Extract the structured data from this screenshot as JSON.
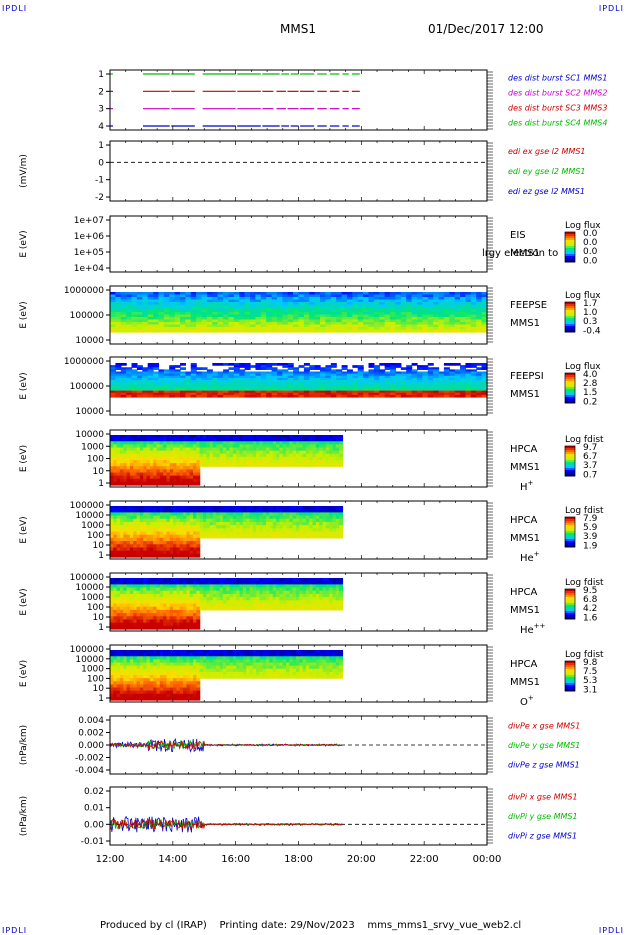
{
  "header": {
    "corner_label": "IPDLI",
    "title": "MMS1",
    "date": "01/Dec/2017 12:00"
  },
  "footer": {
    "producer": "Produced by cl (IRAP)",
    "printing": "Printing date: 29/Nov/2023",
    "file": "mms_mms1_srvy_vue_web2.cl"
  },
  "colors": {
    "blue": "#0000cc",
    "magenta": "#cc00cc",
    "red": "#cc0000",
    "green": "#00bb00",
    "black": "#000000"
  },
  "chart_data": [
    {
      "id": "des-burst",
      "type": "timeline",
      "ylabel": "",
      "yticks": [
        "1",
        "2",
        "3",
        "4"
      ],
      "legend": [
        {
          "text": "des dist burst SC1 MMS1",
          "color": "#0000cc"
        },
        {
          "text": "des dist burst SC2 MMS2",
          "color": "#cc00cc"
        },
        {
          "text": "des dist burst SC3 MMS3",
          "color": "#cc0000"
        },
        {
          "text": "des dist burst SC4 MMS4",
          "color": "#00bb00"
        }
      ],
      "series": [
        {
          "level": 1,
          "color": "#0000cc",
          "segments": [
            [
              13.05,
              13.9
            ],
            [
              13.95,
              14.7
            ],
            [
              14.95,
              16.0
            ],
            [
              16.05,
              16.8
            ],
            [
              16.85,
              17.4
            ],
            [
              17.45,
              17.7
            ],
            [
              17.75,
              18.0
            ],
            [
              18.05,
              18.5
            ],
            [
              18.6,
              18.9
            ],
            [
              19.0,
              19.3
            ],
            [
              19.4,
              19.6
            ],
            [
              19.7,
              19.95
            ]
          ]
        },
        {
          "level": 2,
          "color": "#cc00cc",
          "segments": [
            [
              13.05,
              13.9
            ],
            [
              13.95,
              14.7
            ],
            [
              14.95,
              16.0
            ],
            [
              16.05,
              16.8
            ],
            [
              16.85,
              17.2
            ],
            [
              17.3,
              17.6
            ],
            [
              17.65,
              18.0
            ],
            [
              18.05,
              18.5
            ],
            [
              18.6,
              18.9
            ],
            [
              19.0,
              19.3
            ],
            [
              19.4,
              19.6
            ],
            [
              19.7,
              19.95
            ]
          ]
        },
        {
          "level": 3,
          "color": "#cc0000",
          "segments": [
            [
              13.05,
              13.9
            ],
            [
              13.95,
              14.7
            ],
            [
              14.95,
              16.0
            ],
            [
              16.05,
              16.8
            ],
            [
              16.85,
              17.2
            ],
            [
              17.3,
              17.6
            ],
            [
              17.65,
              18.0
            ],
            [
              18.05,
              18.5
            ],
            [
              18.6,
              18.9
            ],
            [
              19.0,
              19.3
            ],
            [
              19.4,
              19.6
            ],
            [
              19.7,
              19.95
            ]
          ]
        },
        {
          "level": 4,
          "color": "#00bb00",
          "segments": [
            [
              13.05,
              13.9
            ],
            [
              13.95,
              14.7
            ],
            [
              14.95,
              16.0
            ],
            [
              16.05,
              16.8
            ],
            [
              16.85,
              17.4
            ],
            [
              17.45,
              17.7
            ],
            [
              17.75,
              18.0
            ],
            [
              18.05,
              18.5
            ],
            [
              18.6,
              18.9
            ],
            [
              19.0,
              19.3
            ],
            [
              19.4,
              19.6
            ],
            [
              19.7,
              19.95
            ]
          ]
        }
      ]
    },
    {
      "id": "edi-e",
      "type": "line",
      "ylabel": "(mV/m)",
      "yticks": [
        "1",
        "0",
        "-1",
        "-2"
      ],
      "legend": [
        {
          "text": "edi ex gse l2 MMS1",
          "color": "#cc0000"
        },
        {
          "text": "edi ey gse l2 MMS1",
          "color": "#00bb00"
        },
        {
          "text": "edi ez gse l2 MMS1",
          "color": "#0000cc"
        }
      ],
      "zero_line": true
    },
    {
      "id": "eis",
      "type": "heatmap",
      "ylabel": "E (eV)",
      "yticks": [
        "1e+07",
        "1e+06",
        "1e+05",
        "1e+04"
      ],
      "right_labels": [
        "EIS",
        "MMS1"
      ],
      "overlay_text": "lrgy electron to",
      "colorbar": {
        "title": "Log flux",
        "ticks": [
          "0.0",
          "0.0",
          "0.0",
          "0.0"
        ]
      }
    },
    {
      "id": "feepse",
      "type": "heatmap",
      "ylabel": "E (eV)",
      "yticks": [
        "1000000",
        "100000",
        "10000"
      ],
      "right_labels": [
        "FEEPSE",
        "MMS1"
      ],
      "colorbar": {
        "title": "Log flux",
        "ticks": [
          "1.7",
          "1.0",
          "0.3",
          "-0.4"
        ]
      },
      "time_range": [
        12.0,
        24.0
      ]
    },
    {
      "id": "feepsi",
      "type": "heatmap",
      "ylabel": "E (eV)",
      "yticks": [
        "1000000",
        "100000",
        "10000"
      ],
      "right_labels": [
        "FEEPSI",
        "MMS1"
      ],
      "colorbar": {
        "title": "Log flux",
        "ticks": [
          "4.0",
          "2.8",
          "1.5",
          "0.2"
        ]
      },
      "time_range": [
        12.0,
        24.0
      ]
    },
    {
      "id": "hpca-h",
      "type": "heatmap",
      "ylabel": "E (eV)",
      "yticks": [
        "10000",
        "1000",
        "100",
        "10",
        "1"
      ],
      "right_labels": [
        "HPCA",
        "MMS1"
      ],
      "species": {
        "base": "H",
        "sup": "+"
      },
      "colorbar": {
        "title": "Log fdist",
        "ticks": [
          "9.7",
          "6.7",
          "3.7",
          "0.7"
        ]
      },
      "time_range": [
        12.0,
        19.4
      ]
    },
    {
      "id": "hpca-he",
      "type": "heatmap",
      "ylabel": "E (eV)",
      "yticks": [
        "100000",
        "10000",
        "1000",
        "100",
        "10",
        "1"
      ],
      "right_labels": [
        "HPCA",
        "MMS1"
      ],
      "species": {
        "base": "He",
        "sup": "+"
      },
      "colorbar": {
        "title": "Log fdist",
        "ticks": [
          "7.9",
          "5.9",
          "3.9",
          "1.9"
        ]
      },
      "time_range": [
        12.0,
        19.4
      ]
    },
    {
      "id": "hpca-hepp",
      "type": "heatmap",
      "ylabel": "E (eV)",
      "yticks": [
        "100000",
        "10000",
        "1000",
        "100",
        "10",
        "1"
      ],
      "right_labels": [
        "HPCA",
        "MMS1"
      ],
      "species": {
        "base": "He",
        "sup": "++"
      },
      "colorbar": {
        "title": "Log fdist",
        "ticks": [
          "9.5",
          "6.8",
          "4.2",
          "1.6"
        ]
      },
      "time_range": [
        12.0,
        19.4
      ]
    },
    {
      "id": "hpca-o",
      "type": "heatmap",
      "ylabel": "E (eV)",
      "yticks": [
        "100000",
        "10000",
        "1000",
        "100",
        "10",
        "1"
      ],
      "right_labels": [
        "HPCA",
        "MMS1"
      ],
      "species": {
        "base": "O",
        "sup": "+"
      },
      "colorbar": {
        "title": "Log fdist",
        "ticks": [
          "9.8",
          "7.5",
          "5.3",
          "3.1"
        ]
      },
      "time_range": [
        12.0,
        19.4
      ]
    },
    {
      "id": "divpe",
      "type": "line",
      "ylabel": "(nPa/km)",
      "yticks": [
        "0.004",
        "0.002",
        "0.000",
        "-0.002",
        "-0.004"
      ],
      "legend": [
        {
          "text": "divPe x gse MMS1",
          "color": "#cc0000"
        },
        {
          "text": "divPe y gse MMS1",
          "color": "#00bb00"
        },
        {
          "text": "divPe z gse MMS1",
          "color": "#0000cc"
        }
      ],
      "zero_line": true,
      "time_range": [
        12.0,
        19.4
      ]
    },
    {
      "id": "divpi",
      "type": "line",
      "ylabel": "(nPa/km)",
      "yticks": [
        "0.02",
        "0.01",
        "0.00",
        "-0.01"
      ],
      "legend": [
        {
          "text": "divPi x gse MMS1",
          "color": "#cc0000"
        },
        {
          "text": "divPi y gse MMS1",
          "color": "#00bb00"
        },
        {
          "text": "divPi z gse MMS1",
          "color": "#0000cc"
        }
      ],
      "zero_line": true,
      "time_range": [
        12.0,
        19.4
      ]
    }
  ],
  "x_axis": {
    "range": [
      12,
      24
    ],
    "ticks": [
      "12:00",
      "14:00",
      "16:00",
      "18:00",
      "20:00",
      "22:00",
      "00:00"
    ]
  }
}
